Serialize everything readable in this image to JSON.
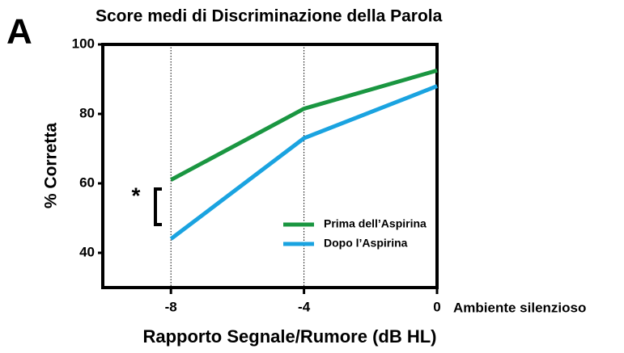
{
  "panel_label": "A",
  "chart_data": {
    "type": "line",
    "title": "Score medi di Discriminazione della Parola",
    "x_label": "Rapporto Segnale/Rumore (dB HL)",
    "y_label": "% Corretta",
    "x": [
      -8,
      -4,
      0
    ],
    "series": [
      {
        "name": "Prima dell’Aspirina",
        "color": "#1a9641",
        "values": [
          61,
          81.5,
          92.5
        ]
      },
      {
        "name": "Dopo l’Aspirina",
        "color": "#1aa3e0",
        "values": [
          44,
          73,
          88
        ]
      }
    ],
    "xlim": [
      -10,
      0
    ],
    "xticks": [
      -8,
      -4,
      0
    ],
    "ylim": [
      30,
      100
    ],
    "yticks": [
      40,
      60,
      80,
      100
    ],
    "x_grid": true,
    "legend": "lower right",
    "annotations": [
      "Ambiente silenzioso",
      "*"
    ]
  }
}
